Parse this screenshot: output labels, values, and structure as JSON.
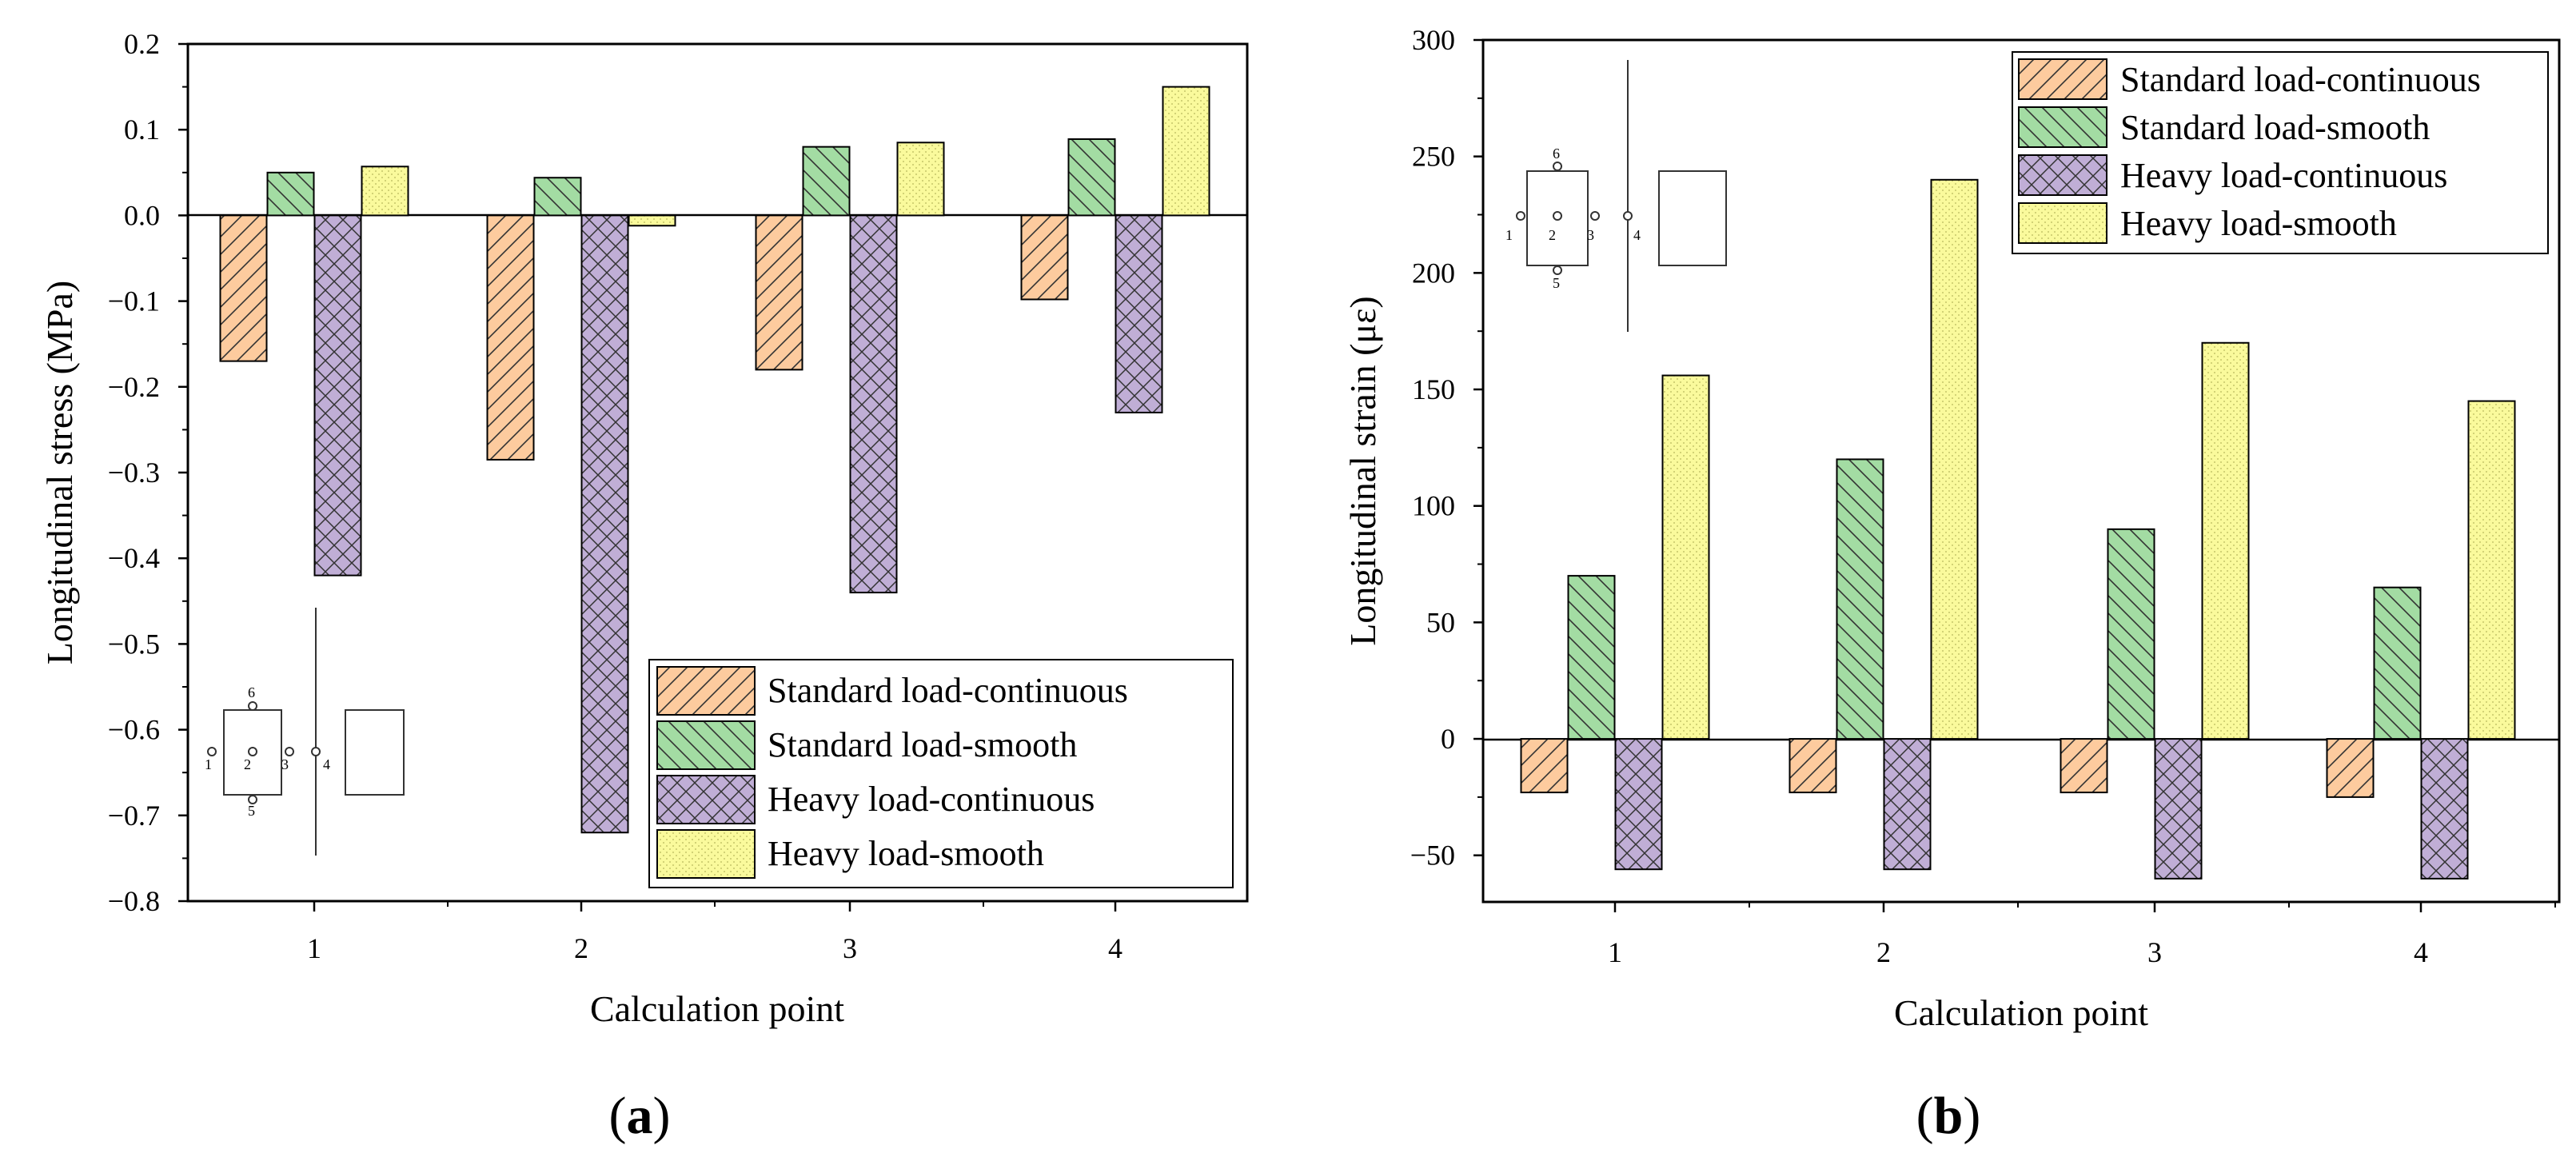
{
  "chart_data": [
    {
      "type": "bar",
      "panel_label": "a",
      "xlabel": "Calculation point",
      "ylabel": "Longitudinal stress (MPa)",
      "categories": [
        "1",
        "2",
        "3",
        "4"
      ],
      "ylim": [
        -0.8,
        0.2
      ],
      "yticks": [
        0.2,
        0.1,
        0.0,
        -0.1,
        -0.2,
        -0.3,
        -0.4,
        -0.5,
        -0.6,
        -0.7,
        -0.8
      ],
      "ytick_labels": [
        "0.2",
        "0.1",
        "0.0",
        "−0.1",
        "−0.2",
        "−0.3",
        "−0.4",
        "−0.5",
        "−0.6",
        "−0.7",
        "−0.8"
      ],
      "legend_position": "bottom-right",
      "series": [
        {
          "name": "Standard load-continuous",
          "values": [
            -0.17,
            -0.285,
            -0.18,
            -0.098
          ]
        },
        {
          "name": "Standard load-smooth",
          "values": [
            0.05,
            0.044,
            0.08,
            0.089
          ]
        },
        {
          "name": "Heavy load-continuous",
          "values": [
            -0.42,
            -0.72,
            -0.44,
            -0.23
          ]
        },
        {
          "name": "Heavy load-smooth",
          "values": [
            0.057,
            -0.012,
            0.085,
            0.15
          ]
        }
      ],
      "inset_labels": [
        "6",
        "1",
        "2",
        "3",
        "4",
        "5"
      ]
    },
    {
      "type": "bar",
      "panel_label": "b",
      "xlabel": "Calculation point",
      "ylabel": "Longitudinal strain (με)",
      "categories": [
        "1",
        "2",
        "3",
        "4"
      ],
      "ylim": [
        -70,
        300
      ],
      "yticks": [
        300,
        250,
        200,
        150,
        100,
        50,
        0,
        -50
      ],
      "ytick_labels": [
        "300",
        "250",
        "200",
        "150",
        "100",
        "50",
        "0",
        "−50"
      ],
      "legend_position": "top-right",
      "series": [
        {
          "name": "Standard load-continuous",
          "values": [
            -23,
            -23,
            -23,
            -25
          ]
        },
        {
          "name": "Standard load-smooth",
          "values": [
            70,
            120,
            90,
            65
          ]
        },
        {
          "name": "Heavy load-continuous",
          "values": [
            -56,
            -56,
            -60,
            -60
          ]
        },
        {
          "name": "Heavy load-smooth",
          "values": [
            156,
            240,
            170,
            145
          ]
        }
      ],
      "inset_labels": [
        "6",
        "1",
        "2",
        "3",
        "4",
        "5"
      ]
    }
  ],
  "styles": {
    "series_fills": [
      "#FDCB9E",
      "#A3DCA3",
      "#C0AED6",
      "#FAFA9C"
    ],
    "series_patterns": [
      "diag-forward",
      "diag-back",
      "crosshatch",
      "dots"
    ]
  }
}
